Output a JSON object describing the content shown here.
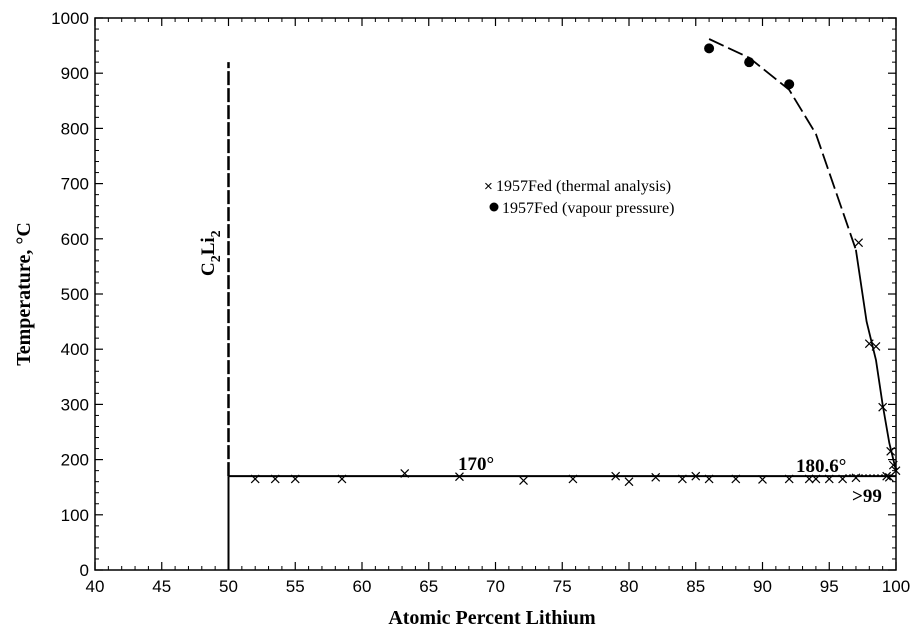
{
  "chart_data": {
    "type": "scatter",
    "xlabel": "Atomic Percent Lithium",
    "ylabel": "Temperature, °C",
    "xlim": [
      40,
      100
    ],
    "ylim": [
      0,
      1000
    ],
    "xticks": [
      40,
      45,
      50,
      55,
      60,
      65,
      70,
      75,
      80,
      85,
      90,
      95,
      100
    ],
    "yticks": [
      0,
      100,
      200,
      300,
      400,
      500,
      600,
      700,
      800,
      900,
      1000
    ],
    "grid": false,
    "legend_position": "center-right",
    "series": [
      {
        "name": "1957Fed (thermal analysis)",
        "marker": "x",
        "points": [
          [
            52,
            165
          ],
          [
            53.5,
            165
          ],
          [
            55,
            165
          ],
          [
            58.5,
            165
          ],
          [
            63.2,
            175
          ],
          [
            67.3,
            169
          ],
          [
            72.1,
            162
          ],
          [
            75.8,
            165
          ],
          [
            79,
            170
          ],
          [
            80,
            160
          ],
          [
            82,
            168
          ],
          [
            84,
            165
          ],
          [
            85,
            170
          ],
          [
            86,
            165
          ],
          [
            88,
            165
          ],
          [
            90,
            164
          ],
          [
            92,
            165
          ],
          [
            93.5,
            165
          ],
          [
            94,
            165
          ],
          [
            95,
            165
          ],
          [
            96,
            165
          ],
          [
            97,
            167
          ],
          [
            97.2,
            593
          ],
          [
            98,
            410
          ],
          [
            98.5,
            405
          ],
          [
            99,
            295
          ],
          [
            99.3,
            170
          ],
          [
            99.5,
            168
          ],
          [
            99.6,
            215
          ],
          [
            99.8,
            190
          ],
          [
            100,
            180
          ]
        ]
      },
      {
        "name": "1957Fed (vapour pressure)",
        "marker": "filled-circle",
        "points": [
          [
            86,
            945
          ],
          [
            89,
            920
          ],
          [
            92,
            880
          ]
        ]
      }
    ],
    "lines": {
      "c2li2_phase_line": {
        "x": 50,
        "y_from": 0,
        "y_to": 170
      },
      "c2li2_dashed_line": {
        "x": 50,
        "y_from": 170,
        "y_to": 920
      },
      "eutectic_line": {
        "x_from": 50,
        "x_to": 100,
        "y": 170
      },
      "liquidus_dashed_curve": [
        [
          86,
          962
        ],
        [
          89,
          928
        ],
        [
          92,
          870
        ],
        [
          94,
          790
        ],
        [
          96,
          650
        ],
        [
          97,
          580
        ]
      ],
      "liquidus_solid_curve": [
        [
          97,
          580
        ],
        [
          97.8,
          450
        ],
        [
          98.5,
          380
        ],
        [
          99,
          300
        ],
        [
          99.5,
          230
        ],
        [
          100,
          180
        ]
      ]
    },
    "annotations": {
      "eutectic_temp": "170°",
      "melting_point": "180.6°",
      "composition": ">99",
      "phase_label": "C2Li2"
    }
  }
}
